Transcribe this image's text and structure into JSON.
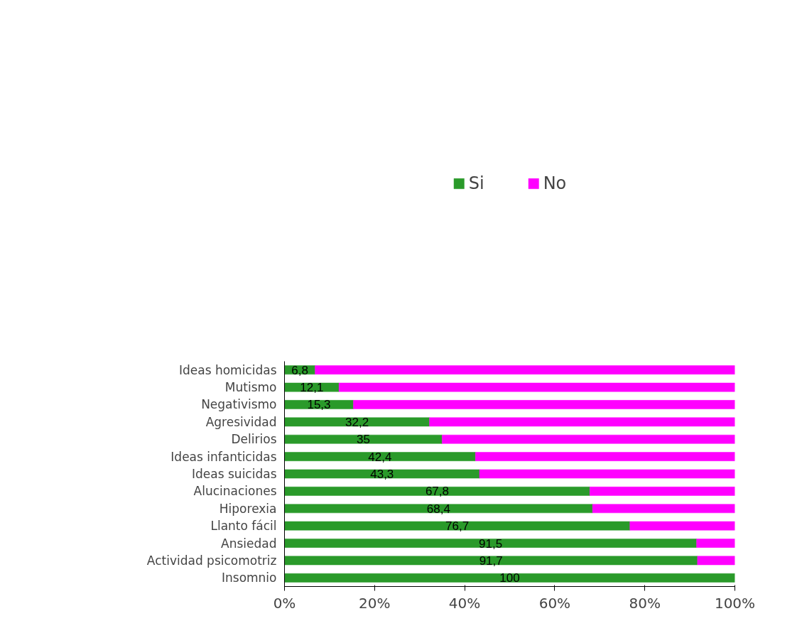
{
  "chart_data": {
    "type": "bar",
    "orientation": "horizontal",
    "stacked": true,
    "categories": [
      "Ideas homicidas",
      "Mutismo",
      "Negativismo",
      "Agresividad",
      "Delirios",
      "Ideas infanticidas",
      "Ideas suicidas",
      "Alucinaciones",
      "Hiporexia",
      "Llanto fácil",
      "Ansiedad",
      "Actividad psicomotriz",
      "Insomnio"
    ],
    "series": [
      {
        "name": "Si",
        "color": "#2a9a2a",
        "values": [
          6.8,
          12.1,
          15.3,
          32.2,
          35,
          42.4,
          43.3,
          67.8,
          68.4,
          76.7,
          91.5,
          91.7,
          100
        ],
        "value_labels": [
          "6,8",
          "12,1",
          "15,3",
          "32,2",
          "35",
          "42,4",
          "43,3",
          "67,8",
          "68,4",
          "76,7",
          "91,5",
          "91,7",
          "100"
        ]
      },
      {
        "name": "No",
        "color": "#ff00ff",
        "values": [
          93.2,
          87.9,
          84.7,
          67.8,
          65,
          57.6,
          56.7,
          32.2,
          31.6,
          23.3,
          8.5,
          8.3,
          0
        ]
      }
    ],
    "xlim": [
      0,
      100
    ],
    "xticks": [
      {
        "value": 0,
        "label": "0%"
      },
      {
        "value": 20,
        "label": "20%"
      },
      {
        "value": 40,
        "label": "40%"
      },
      {
        "value": 60,
        "label": "60%"
      },
      {
        "value": 80,
        "label": "80%"
      },
      {
        "value": 100,
        "label": "100%"
      }
    ],
    "grid": false,
    "legend": "top"
  }
}
